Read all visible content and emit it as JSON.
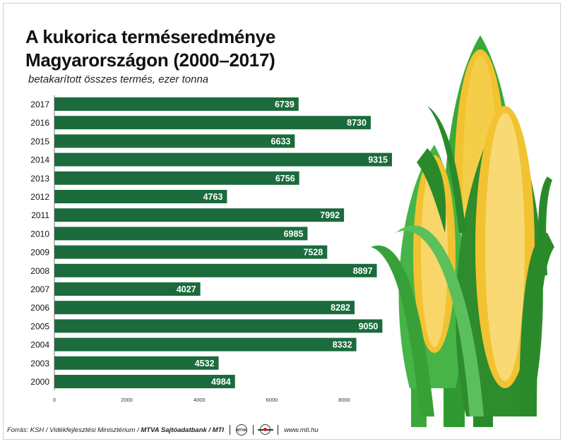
{
  "title": "A kukorica terméseredménye Magyarországon (2000–2017)",
  "subtitle": "betakarított összes termés, ezer tonna",
  "footer": {
    "source": "Forrás: KSH / Vidékfejlesztési Minisztérium /",
    "bank": "MTVA Sajtóadatbank / MTI",
    "logo1_text": "MTVA",
    "url": "www.mti.hu"
  },
  "colors": {
    "bar": "#1b6b3c",
    "bar_text": "#ffffff",
    "corn_yellow": "#f2c230",
    "husk_green": "#2e8b2e"
  },
  "chart_data": {
    "type": "bar",
    "orientation": "horizontal",
    "categories": [
      "2017",
      "2016",
      "2015",
      "2014",
      "2013",
      "2012",
      "2011",
      "2010",
      "2009",
      "2008",
      "2007",
      "2006",
      "2005",
      "2004",
      "2003",
      "2000"
    ],
    "values": [
      6739,
      8730,
      6633,
      9315,
      6756,
      4763,
      7992,
      6985,
      7528,
      8897,
      4027,
      8282,
      9050,
      8332,
      4532,
      4984
    ],
    "data_labels": [
      "6739",
      "8730",
      "6633",
      "9315",
      "6756",
      "4763",
      "7992",
      "6985",
      "7528",
      "8897",
      "4027",
      "8282",
      "9050",
      "8332",
      "4532",
      "4984"
    ],
    "title": "A kukorica terméseredménye Magyarországon (2000–2017)",
    "xlabel": "",
    "ylabel": "",
    "xlim": [
      0,
      9315
    ],
    "xticks": [
      0,
      2000,
      4000,
      6000,
      8000
    ],
    "xtick_labels": [
      "0",
      "2000",
      "4000",
      "6000",
      "8000"
    ],
    "grid": false,
    "legend": "none"
  }
}
